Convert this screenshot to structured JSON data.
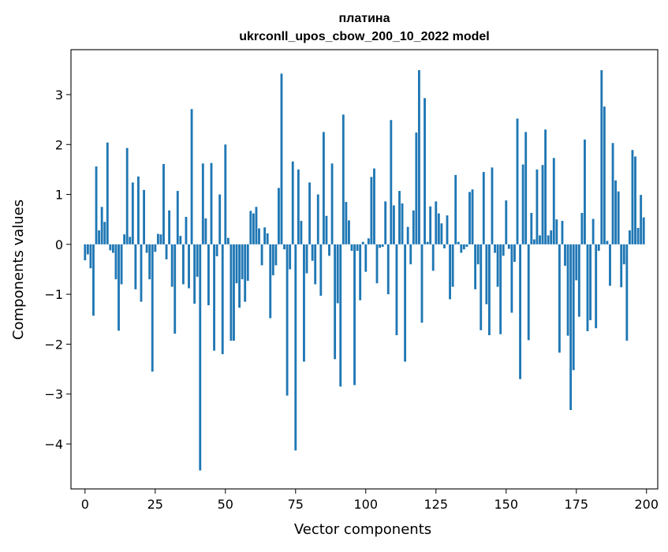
{
  "chart_data": {
    "type": "bar",
    "title_line1": "платина",
    "title_line2": "ukrconll_upos_cbow_200_10_2022 model",
    "xlabel": "Vector components",
    "ylabel": "Components values",
    "xlim": [
      -5,
      204
    ],
    "ylim": [
      -4.9,
      3.9
    ],
    "xticks": [
      0,
      25,
      50,
      75,
      100,
      125,
      150,
      175,
      200
    ],
    "yticks": [
      -4,
      -3,
      -2,
      -1,
      0,
      1,
      2,
      3
    ],
    "grid": false,
    "bar_color": "#1f77b4",
    "x": [
      0,
      1,
      2,
      3,
      4,
      5,
      6,
      7,
      8,
      9,
      10,
      11,
      12,
      13,
      14,
      15,
      16,
      17,
      18,
      19,
      20,
      21,
      22,
      23,
      24,
      25,
      26,
      27,
      28,
      29,
      30,
      31,
      32,
      33,
      34,
      35,
      36,
      37,
      38,
      39,
      40,
      41,
      42,
      43,
      44,
      45,
      46,
      47,
      48,
      49,
      50,
      51,
      52,
      53,
      54,
      55,
      56,
      57,
      58,
      59,
      60,
      61,
      62,
      63,
      64,
      65,
      66,
      67,
      68,
      69,
      70,
      71,
      72,
      73,
      74,
      75,
      76,
      77,
      78,
      79,
      80,
      81,
      82,
      83,
      84,
      85,
      86,
      87,
      88,
      89,
      90,
      91,
      92,
      93,
      94,
      95,
      96,
      97,
      98,
      99,
      100,
      101,
      102,
      103,
      104,
      105,
      106,
      107,
      108,
      109,
      110,
      111,
      112,
      113,
      114,
      115,
      116,
      117,
      118,
      119,
      120,
      121,
      122,
      123,
      124,
      125,
      126,
      127,
      128,
      129,
      130,
      131,
      132,
      133,
      134,
      135,
      136,
      137,
      138,
      139,
      140,
      141,
      142,
      143,
      144,
      145,
      146,
      147,
      148,
      149,
      150,
      151,
      152,
      153,
      154,
      155,
      156,
      157,
      158,
      159,
      160,
      161,
      162,
      163,
      164,
      165,
      166,
      167,
      168,
      169,
      170,
      171,
      172,
      173,
      174,
      175,
      176,
      177,
      178,
      179,
      180,
      181,
      182,
      183,
      184,
      185,
      186,
      187,
      188,
      189,
      190,
      191,
      192,
      193,
      194,
      195,
      196,
      197,
      198,
      199
    ],
    "values": [
      -0.32,
      -0.2,
      -0.48,
      -1.43,
      1.56,
      0.28,
      0.75,
      0.45,
      2.04,
      -0.12,
      -0.17,
      -0.7,
      -1.73,
      -0.8,
      0.2,
      1.93,
      0.15,
      1.24,
      -0.9,
      1.36,
      -1.15,
      1.09,
      -0.17,
      -0.7,
      -2.55,
      -0.15,
      0.21,
      0.2,
      1.61,
      -0.3,
      0.68,
      -0.85,
      -1.79,
      1.07,
      0.17,
      -0.8,
      0.55,
      -0.88,
      2.71,
      -1.19,
      -0.65,
      -4.53,
      1.62,
      0.52,
      -1.22,
      1.63,
      -2.13,
      -0.24,
      1.0,
      -2.2,
      2.0,
      0.13,
      -1.93,
      -1.93,
      -0.78,
      -1.27,
      -0.7,
      -1.15,
      -0.73,
      0.67,
      0.62,
      0.75,
      0.32,
      -0.42,
      0.34,
      0.22,
      -1.48,
      -0.62,
      -0.42,
      1.13,
      3.42,
      -0.1,
      -3.03,
      -0.5,
      1.66,
      -4.13,
      1.5,
      0.47,
      -2.35,
      -0.58,
      1.24,
      -0.33,
      -0.8,
      1.0,
      -1.03,
      2.25,
      0.57,
      -0.23,
      1.62,
      -2.3,
      -1.18,
      -2.85,
      2.6,
      0.85,
      0.48,
      -0.13,
      -2.82,
      -0.13,
      -1.12,
      0.05,
      -0.55,
      0.12,
      1.35,
      1.52,
      -0.78,
      -0.07,
      -0.05,
      0.86,
      -1.0,
      2.49,
      0.78,
      -1.82,
      1.07,
      0.82,
      -2.35,
      0.35,
      -0.4,
      0.68,
      2.24,
      3.49,
      -1.57,
      2.93,
      0.05,
      0.76,
      -0.53,
      0.86,
      0.62,
      0.42,
      -0.08,
      0.58,
      -1.1,
      -0.85,
      1.39,
      0.05,
      -0.17,
      -0.1,
      -0.05,
      1.05,
      1.1,
      -0.9,
      -0.4,
      -1.72,
      1.45,
      -1.2,
      -1.82,
      1.54,
      -0.17,
      -0.85,
      -1.8,
      -0.23,
      0.88,
      -0.09,
      -1.37,
      -0.35,
      2.52,
      -2.7,
      1.6,
      2.25,
      -1.92,
      0.63,
      0.1,
      1.5,
      0.18,
      1.59,
      2.3,
      0.18,
      0.28,
      1.73,
      0.5,
      -2.17,
      0.47,
      -0.43,
      -1.83,
      -3.32,
      -2.52,
      -0.72,
      -1.45,
      0.63,
      2.1,
      -1.74,
      -1.52,
      0.51,
      -1.68,
      -0.13,
      3.49,
      2.76,
      0.07,
      -0.83,
      2.03,
      1.28,
      1.06,
      -0.86,
      -0.4,
      -1.93,
      0.28,
      1.89,
      1.76,
      0.33,
      0.99,
      0.54
    ]
  }
}
